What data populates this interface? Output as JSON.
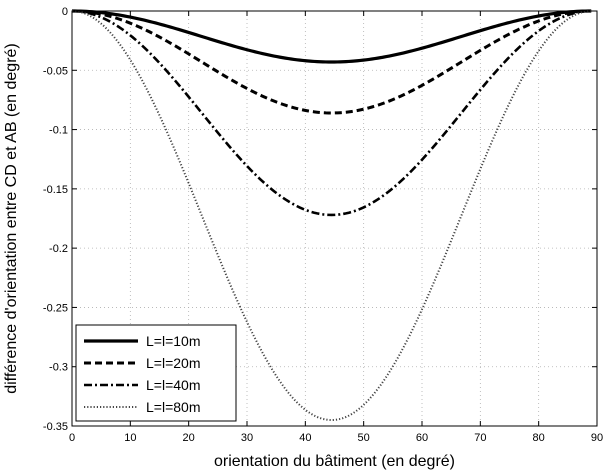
{
  "chart_data": {
    "type": "line",
    "title": "",
    "xlabel": "orientation du bâtiment (en degré)",
    "ylabel": "différence d'orientation entre CD et AB (en degré)",
    "xlim": [
      0,
      90
    ],
    "ylim": [
      -0.35,
      0
    ],
    "xticks": [
      0,
      10,
      20,
      30,
      40,
      50,
      60,
      70,
      80,
      90
    ],
    "yticks": [
      0,
      -0.05,
      -0.1,
      -0.15,
      -0.2,
      -0.25,
      -0.3,
      -0.35
    ],
    "xtick_labels": [
      "0",
      "10",
      "20",
      "30",
      "40",
      "50",
      "60",
      "70",
      "80",
      "90"
    ],
    "ytick_labels": [
      "0",
      "-0.05",
      "-0.1",
      "-0.15",
      "-0.2",
      "-0.25",
      "-0.3",
      "-0.35"
    ],
    "grid": true,
    "legend_position": "bottom-left",
    "x_domain": [
      0,
      89
    ],
    "series": [
      {
        "name": "L=l=10m",
        "peak": -0.043,
        "style": "solid",
        "color": "#000000"
      },
      {
        "name": "L=l=20m",
        "peak": -0.086,
        "style": "dashed",
        "color": "#000000"
      },
      {
        "name": "L=l=40m",
        "peak": -0.172,
        "style": "dashdot",
        "color": "#000000"
      },
      {
        "name": "L=l=80m",
        "peak": -0.345,
        "style": "dotted",
        "color": "#444444"
      }
    ]
  }
}
